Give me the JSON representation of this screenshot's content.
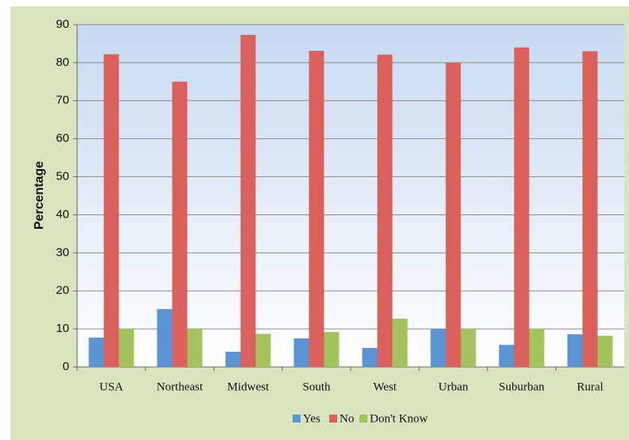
{
  "chart_data": {
    "type": "bar",
    "ylabel": "Percentage",
    "categories": [
      "USA",
      "Northeast",
      "Midwest",
      "South",
      "West",
      "Urban",
      "Suburban",
      "Rural"
    ],
    "series": [
      {
        "name": "Yes",
        "color": "#5b93d3",
        "values": [
          7.7,
          15.2,
          4,
          7.5,
          5,
          10,
          5.8,
          8.6
        ]
      },
      {
        "name": "No",
        "color": "#d9605b",
        "values": [
          82.2,
          75,
          87.3,
          83.1,
          82.1,
          80,
          84,
          83
        ]
      },
      {
        "name": "Don't Know",
        "color": "#a3c35f",
        "values": [
          10,
          10,
          8.7,
          9.2,
          12.7,
          10,
          10,
          8.2
        ]
      }
    ],
    "ylim": [
      0,
      90
    ],
    "yticks": [
      0,
      10,
      20,
      30,
      40,
      50,
      60,
      70,
      80,
      90
    ],
    "grid": true,
    "legend": "bottom"
  }
}
